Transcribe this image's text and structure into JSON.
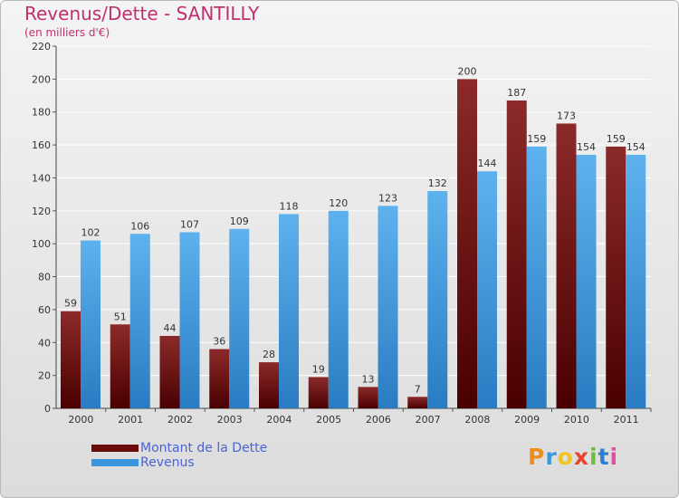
{
  "title": "Revenus/Dette - SANTILLY",
  "subtitle": "(en milliers d'€)",
  "logo": {
    "text": "Proxiti",
    "colors": [
      "#f08c1a",
      "#3a9ad9",
      "#f0c419",
      "#e8452c",
      "#6cbf3a",
      "#2f7fd1",
      "#e04fa0"
    ]
  },
  "colors": {
    "dette": "#6b0b0b",
    "revenus": "#3a95dc",
    "title": "#c0306e",
    "legend_text": "#4a63d6"
  },
  "chart_data": {
    "type": "bar",
    "categories": [
      "2000",
      "2001",
      "2002",
      "2003",
      "2004",
      "2005",
      "2006",
      "2007",
      "2008",
      "2009",
      "2010",
      "2011"
    ],
    "series": [
      {
        "name": "Montant de la Dette",
        "values": [
          59,
          51,
          44,
          36,
          28,
          19,
          13,
          7,
          200,
          187,
          173,
          159
        ]
      },
      {
        "name": "Revenus",
        "values": [
          102,
          106,
          107,
          109,
          118,
          120,
          123,
          132,
          144,
          159,
          154,
          154
        ]
      }
    ],
    "ylim": [
      0,
      220
    ],
    "yticks": [
      0,
      20,
      40,
      60,
      80,
      100,
      120,
      140,
      160,
      180,
      200,
      220
    ],
    "grid": true,
    "legend_position": "bottom-left"
  }
}
